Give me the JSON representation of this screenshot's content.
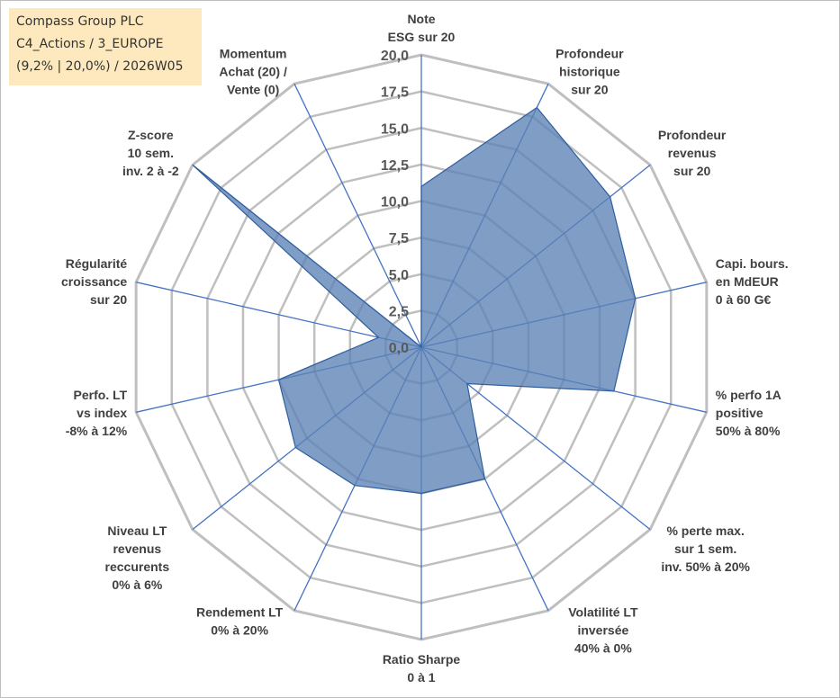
{
  "info": {
    "lines": [
      "Compass Group PLC",
      "C4_Actions / 3_EUROPE",
      "(9,2% | 20,0%) / 2026W05"
    ]
  },
  "chart_data": {
    "type": "radar",
    "title": "",
    "rlim": [
      0,
      20
    ],
    "tick_labels": [
      "0,0",
      "2,5",
      "5,0",
      "7,5",
      "10,0",
      "12,5",
      "15,0",
      "17,5",
      "20,0"
    ],
    "axes": [
      [
        "Note",
        "ESG sur 20"
      ],
      [
        "Profondeur",
        "historique",
        "sur 20"
      ],
      [
        "Profondeur",
        "revenus",
        "sur 20"
      ],
      [
        "Capi. bours.",
        "en MdEUR",
        "0 à 60 G€"
      ],
      [
        "% perfo 1A",
        "positive",
        "50% à 80%"
      ],
      [
        "% perte max.",
        "sur 1 sem.",
        "inv. 50% à 20%"
      ],
      [
        "Volatilité LT",
        "inversée",
        "40% à 0%"
      ],
      [
        "Ratio Sharpe",
        "0 à 1"
      ],
      [
        "Rendement LT",
        "0% à 20%"
      ],
      [
        "Niveau LT",
        "revenus",
        "reccurents",
        "0% à 6%"
      ],
      [
        "Perfo. LT",
        "vs index",
        "-8% à 12%"
      ],
      [
        "Régularité",
        "croissance",
        "sur 20"
      ],
      [
        "Z-score",
        "10 sem.",
        "inv. 2 à -2"
      ],
      [
        "Momentum",
        "Achat (20) /",
        "Vente (0)"
      ]
    ],
    "series": [
      {
        "values": [
          11.0,
          18.2,
          16.5,
          15.0,
          13.5,
          4.0,
          10.0,
          10.0,
          10.5,
          11.0,
          10.0,
          3.0,
          20.0,
          0.0
        ]
      }
    ],
    "colors": {
      "fill": "#5b82b5",
      "fill_opacity": 0.78,
      "line": "#2f5f9e",
      "grid": "#bfbfbf",
      "spokes": "#4472c4"
    },
    "grid": true
  }
}
